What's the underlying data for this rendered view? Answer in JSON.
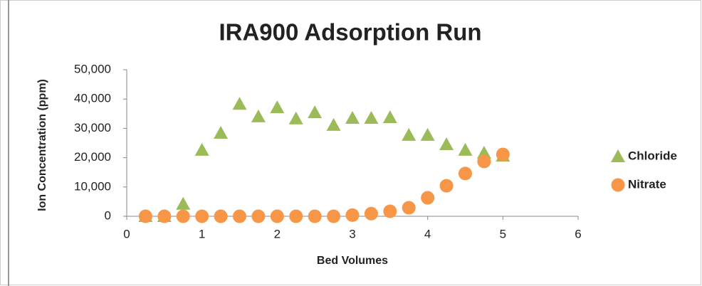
{
  "chart_data": {
    "type": "scatter",
    "title": "IRA900 Adsorption Run",
    "x_label": "Bed Volumes",
    "y_label": "Ion Concentration (ppm)",
    "x": [
      0.25,
      0.5,
      0.75,
      1,
      1.25,
      1.5,
      1.75,
      2,
      2.25,
      2.5,
      2.75,
      3,
      3.25,
      3.5,
      3.75,
      4,
      4.25,
      4.5,
      4.75,
      5
    ],
    "series": [
      {
        "name": "Chloride",
        "color": "#9bbb59",
        "marker": "triangle",
        "values": [
          0,
          0,
          4200,
          22600,
          28400,
          38300,
          34000,
          37100,
          33300,
          35400,
          31100,
          33500,
          33500,
          33700,
          27700,
          27700,
          24500,
          22600,
          21600,
          20600
        ]
      },
      {
        "name": "Nitrate",
        "color": "#f79646",
        "marker": "circle",
        "values": [
          0,
          0,
          0,
          0,
          0,
          0,
          0,
          0,
          0,
          0,
          0,
          400,
          900,
          1700,
          2900,
          6300,
          10400,
          14600,
          18700,
          21100
        ]
      }
    ],
    "xlim": [
      0,
      6
    ],
    "xticks": [
      0,
      1,
      2,
      3,
      4,
      5,
      6
    ],
    "ylim": [
      0,
      50000
    ],
    "yticks": [
      0,
      {
        "value": 10000,
        "label": "10,000"
      },
      {
        "value": 20000,
        "label": "20,000"
      },
      {
        "value": 30000,
        "label": "30,000"
      },
      {
        "value": 40000,
        "label": "40,000"
      },
      {
        "value": 50000,
        "label": "50,000"
      }
    ],
    "grid": false,
    "legend": "right"
  }
}
